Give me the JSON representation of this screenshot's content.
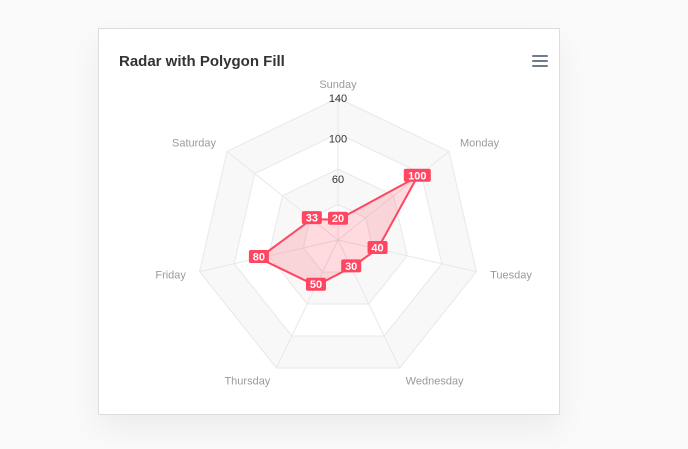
{
  "card": {
    "title": "Radar with Polygon Fill"
  },
  "toolbar": {
    "menu_icon": "hamburger-menu-icon"
  },
  "colors": {
    "series": "#ff4560",
    "grid_band_fill": "#f8f8f8",
    "grid_band_alt": "#ffffff",
    "grid_stroke": "#e8e8e8",
    "axis_label": "#9a9a9a"
  },
  "chart_data": {
    "type": "radar",
    "title": "Radar with Polygon Fill",
    "categories": [
      "Sunday",
      "Monday",
      "Tuesday",
      "Wednesday",
      "Thursday",
      "Friday",
      "Saturday"
    ],
    "series": [
      {
        "values": [
          20,
          100,
          40,
          30,
          50,
          80,
          33
        ]
      }
    ],
    "ylim": [
      0,
      140
    ],
    "ticks": [
      20,
      60,
      100,
      140
    ],
    "fill": "polygon",
    "data_labels": true
  }
}
